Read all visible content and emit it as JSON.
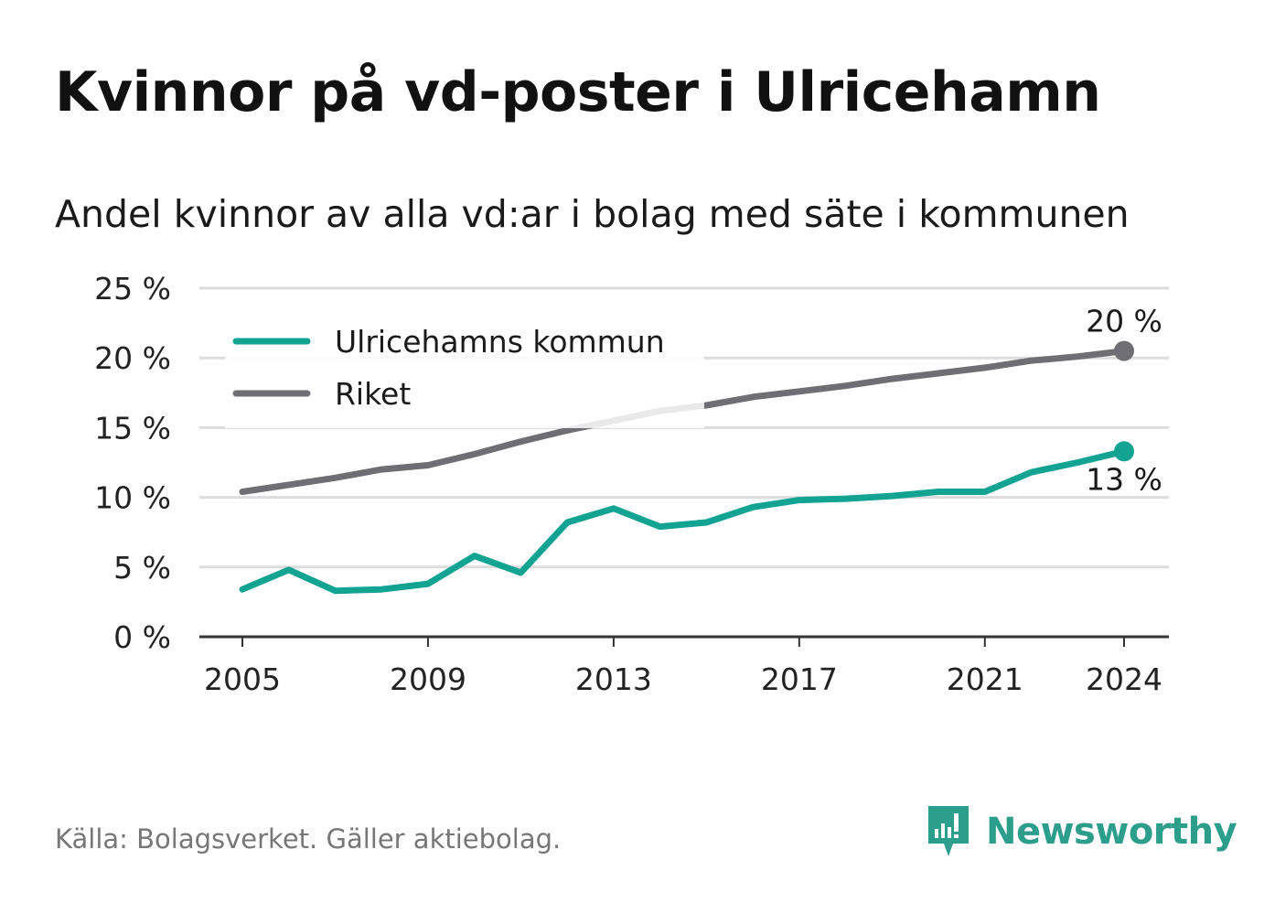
{
  "title": "Kvinnor på vd-poster i Ulricehamn",
  "subtitle": "Andel kvinnor av alla vd:ar i bolag med säte i kommunen",
  "source": "Källa: Bolagsverket. Gäller aktiebolag.",
  "brand": "Newsworthy",
  "colors": {
    "local": "#12a393",
    "national": "#6e6e74",
    "grid": "#dcdcdc",
    "axis": "#333333",
    "brand": "#2d9d8c"
  },
  "chart_data": {
    "type": "line",
    "title": "Kvinnor på vd-poster i Ulricehamn",
    "subtitle": "Andel kvinnor av alla vd:ar i bolag med säte i kommunen",
    "x": [
      2005,
      2006,
      2007,
      2008,
      2009,
      2010,
      2011,
      2012,
      2013,
      2014,
      2015,
      2016,
      2017,
      2018,
      2019,
      2020,
      2021,
      2022,
      2023,
      2024
    ],
    "x_ticks": [
      "2005",
      "2009",
      "2013",
      "2017",
      "2021",
      "2024"
    ],
    "y_ticks": [
      "0 %",
      "5 %",
      "10 %",
      "15 %",
      "20 %",
      "25 %"
    ],
    "ylim": [
      0,
      25
    ],
    "grid": true,
    "legend_position": "top-left",
    "series": [
      {
        "name": "Ulricehamns kommun",
        "color": "#12a393",
        "values": [
          3.4,
          4.8,
          3.3,
          3.4,
          3.8,
          5.8,
          4.6,
          8.2,
          9.2,
          7.9,
          8.2,
          9.3,
          9.8,
          9.9,
          10.1,
          10.4,
          10.4,
          11.8,
          12.5,
          13.3
        ],
        "end_label": "13 %"
      },
      {
        "name": "Riket",
        "color": "#6e6e74",
        "values": [
          10.4,
          10.9,
          11.4,
          12.0,
          12.3,
          13.1,
          14.0,
          14.8,
          15.5,
          16.2,
          16.6,
          17.2,
          17.6,
          18.0,
          18.5,
          18.9,
          19.3,
          19.8,
          20.1,
          20.5
        ],
        "end_label": "20 %"
      }
    ]
  }
}
